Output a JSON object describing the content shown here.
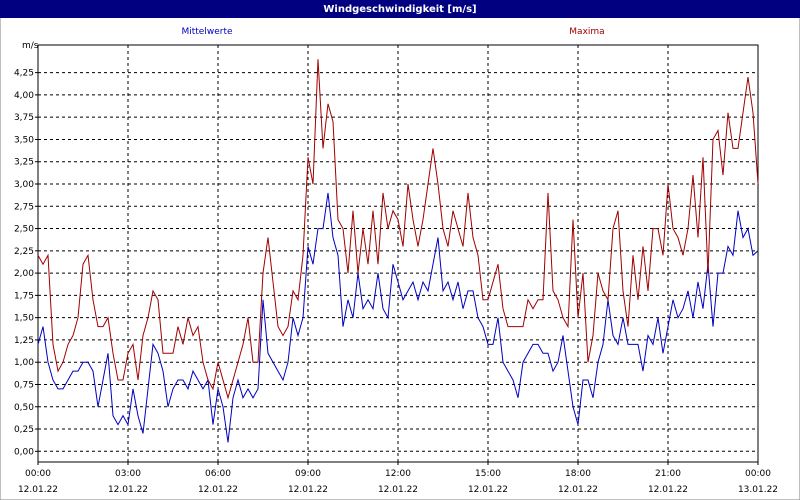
{
  "chart_data": {
    "type": "line",
    "title": "Windgeschwindigkeit [m/s]",
    "ylabel": "m/s",
    "x": [
      0,
      10,
      20,
      30,
      40,
      50,
      60,
      70,
      80,
      90,
      100,
      110,
      120,
      130,
      140,
      150,
      160,
      170,
      180,
      190,
      200,
      210,
      220,
      230,
      240,
      250,
      260,
      270,
      280,
      290,
      300,
      310,
      320,
      330,
      340,
      350,
      360,
      370,
      380,
      390,
      400,
      410,
      420,
      430,
      440,
      450,
      460,
      470,
      480,
      490,
      500,
      510,
      520,
      530,
      540,
      550,
      560,
      570,
      580,
      590,
      600,
      610,
      620,
      630,
      640,
      650,
      660,
      670,
      680,
      690,
      700,
      710,
      720,
      730,
      740,
      750,
      760,
      770,
      780,
      790,
      800,
      810,
      820,
      830,
      840,
      850,
      860,
      870,
      880,
      890,
      900,
      910,
      920,
      930,
      940,
      950,
      960,
      970,
      980,
      990,
      1000,
      1010,
      1020,
      1030,
      1040,
      1050,
      1060,
      1070,
      1080,
      1090,
      1100,
      1110,
      1120,
      1130,
      1140,
      1150,
      1160,
      1170,
      1180,
      1190,
      1200,
      1210,
      1220,
      1230,
      1240,
      1250,
      1260,
      1270,
      1280,
      1290,
      1300,
      1310,
      1320,
      1330,
      1340,
      1350,
      1360,
      1370,
      1380,
      1390,
      1400,
      1410,
      1420,
      1430,
      1440
    ],
    "series": [
      {
        "name": "Mittelwerte",
        "color": "#0000c0",
        "values": [
          1.2,
          1.4,
          1.0,
          0.8,
          0.7,
          0.7,
          0.8,
          0.9,
          0.9,
          1.0,
          1.0,
          0.9,
          0.5,
          0.8,
          1.1,
          0.4,
          0.3,
          0.4,
          0.3,
          0.7,
          0.4,
          0.2,
          0.7,
          1.2,
          1.1,
          0.9,
          0.5,
          0.7,
          0.8,
          0.8,
          0.7,
          0.9,
          0.8,
          0.7,
          0.8,
          0.3,
          0.7,
          0.5,
          0.1,
          0.6,
          0.8,
          0.6,
          0.7,
          0.6,
          0.7,
          1.7,
          1.1,
          1.0,
          0.9,
          0.8,
          1.0,
          1.5,
          1.3,
          1.5,
          2.3,
          2.1,
          2.5,
          2.5,
          2.9,
          2.4,
          2.2,
          1.4,
          1.7,
          1.5,
          2.0,
          1.6,
          1.7,
          1.6,
          2.0,
          1.6,
          1.5,
          2.1,
          1.9,
          1.7,
          1.8,
          1.9,
          1.7,
          1.9,
          1.8,
          2.1,
          2.4,
          1.8,
          1.9,
          1.7,
          1.9,
          1.6,
          1.8,
          1.8,
          1.5,
          1.4,
          1.2,
          1.2,
          1.5,
          1.0,
          0.9,
          0.8,
          0.6,
          1.0,
          1.1,
          1.2,
          1.2,
          1.1,
          1.1,
          0.9,
          1.0,
          1.3,
          0.9,
          0.5,
          0.3,
          0.8,
          0.8,
          0.6,
          1.0,
          1.2,
          1.7,
          1.3,
          1.2,
          1.5,
          1.2,
          1.2,
          1.2,
          0.9,
          1.3,
          1.2,
          1.5,
          1.1,
          1.4,
          1.7,
          1.5,
          1.6,
          1.8,
          1.5,
          1.9,
          1.6,
          2.1,
          1.4,
          2.0,
          2.0,
          2.3,
          2.2,
          2.7,
          2.4,
          2.5,
          2.2,
          2.25
        ]
      },
      {
        "name": "Maxima",
        "color": "#a00000",
        "values": [
          2.2,
          2.1,
          2.2,
          1.2,
          0.9,
          1.0,
          1.2,
          1.3,
          1.5,
          2.1,
          2.2,
          1.7,
          1.4,
          1.4,
          1.5,
          1.1,
          0.8,
          0.8,
          1.1,
          1.2,
          0.8,
          1.3,
          1.5,
          1.8,
          1.7,
          1.1,
          1.1,
          1.1,
          1.4,
          1.2,
          1.5,
          1.3,
          1.4,
          1.0,
          0.8,
          0.7,
          1.0,
          0.8,
          0.6,
          0.8,
          1.0,
          1.2,
          1.5,
          1.0,
          1.0,
          2.0,
          2.4,
          1.9,
          1.4,
          1.3,
          1.4,
          1.8,
          1.7,
          2.2,
          3.3,
          3.0,
          4.4,
          3.4,
          3.9,
          3.7,
          2.6,
          2.5,
          2.0,
          2.7,
          2.0,
          2.5,
          2.1,
          2.7,
          2.1,
          2.9,
          2.5,
          2.7,
          2.6,
          2.3,
          3.0,
          2.6,
          2.3,
          2.6,
          3.0,
          3.4,
          3.0,
          2.5,
          2.3,
          2.7,
          2.5,
          2.3,
          2.9,
          2.4,
          2.2,
          1.7,
          1.7,
          1.9,
          2.1,
          1.6,
          1.4,
          1.4,
          1.4,
          1.4,
          1.7,
          1.6,
          1.7,
          1.7,
          2.9,
          1.8,
          1.7,
          1.5,
          1.4,
          2.6,
          1.5,
          2.0,
          1.0,
          1.3,
          2.0,
          1.8,
          1.7,
          2.5,
          2.7,
          1.8,
          1.4,
          2.2,
          1.7,
          2.3,
          1.8,
          2.5,
          2.5,
          2.2,
          3.0,
          2.5,
          2.4,
          2.2,
          2.5,
          3.1,
          2.4,
          3.3,
          2.0,
          3.5,
          3.6,
          3.1,
          3.8,
          3.4,
          3.4,
          3.8,
          4.2,
          3.8,
          3.0
        ]
      }
    ],
    "xlim": [
      0,
      1440
    ],
    "xticks": [
      {
        "value": 0,
        "label": "00:00"
      },
      {
        "value": 180,
        "label": "03:00"
      },
      {
        "value": 360,
        "label": "06:00"
      },
      {
        "value": 540,
        "label": "09:00"
      },
      {
        "value": 720,
        "label": "12:00"
      },
      {
        "value": 900,
        "label": "15:00"
      },
      {
        "value": 1080,
        "label": "18:00"
      },
      {
        "value": 1260,
        "label": "21:00"
      },
      {
        "value": 1440,
        "label": "00:00"
      }
    ],
    "xtick_dates": [
      "12.01.22",
      "12.01.22",
      "12.01.22",
      "12.01.22",
      "12.01.22",
      "12.01.22",
      "12.01.22",
      "12.01.22",
      "13.01.22"
    ],
    "ylim": [
      -0.12,
      4.56
    ],
    "yticks": [
      {
        "value": 0,
        "label": "0,00"
      },
      {
        "value": 0.25,
        "label": "0,25"
      },
      {
        "value": 0.5,
        "label": "0,50"
      },
      {
        "value": 0.75,
        "label": "0,75"
      },
      {
        "value": 1,
        "label": "1,00"
      },
      {
        "value": 1.25,
        "label": "1,25"
      },
      {
        "value": 1.5,
        "label": "1,50"
      },
      {
        "value": 1.75,
        "label": "1,75"
      },
      {
        "value": 2,
        "label": "2,00"
      },
      {
        "value": 2.25,
        "label": "2,25"
      },
      {
        "value": 2.5,
        "label": "2,50"
      },
      {
        "value": 2.75,
        "label": "2,75"
      },
      {
        "value": 3,
        "label": "3,00"
      },
      {
        "value": 3.25,
        "label": "3,25"
      },
      {
        "value": 3.5,
        "label": "3,50"
      },
      {
        "value": 3.75,
        "label": "3,75"
      },
      {
        "value": 4,
        "label": "4,00"
      },
      {
        "value": 4.25,
        "label": "4,25"
      }
    ],
    "grid": true
  }
}
